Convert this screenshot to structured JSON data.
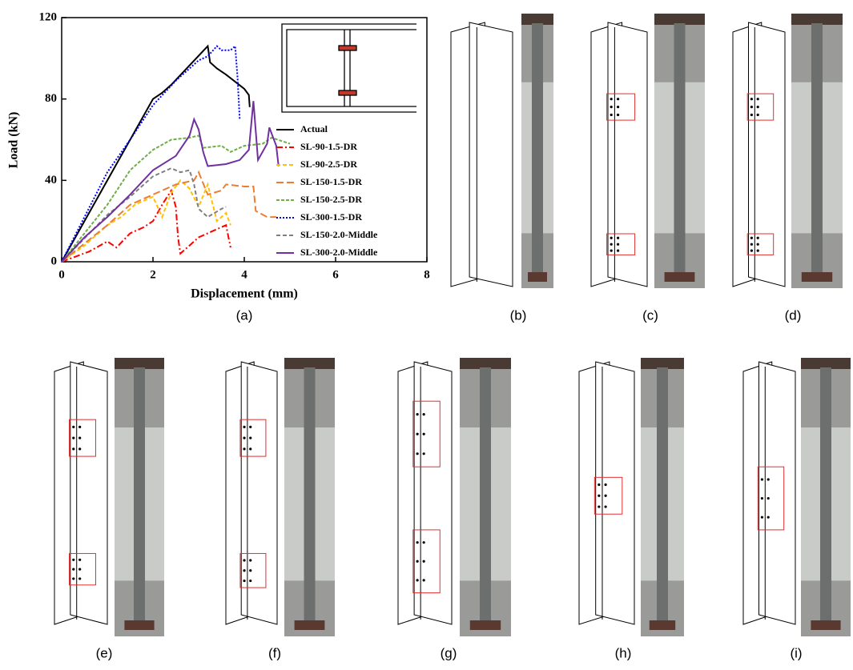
{
  "chart_data": {
    "type": "line",
    "x_label": "Displacement (mm)",
    "y_label": "Load (kN)",
    "xlim": [
      0,
      8
    ],
    "ylim": [
      0,
      120
    ],
    "xticks": [
      0,
      2,
      4,
      6,
      8
    ],
    "yticks": [
      0,
      40,
      80,
      120
    ],
    "grid": false,
    "legend": "lower right",
    "series": [
      {
        "name": "Actual",
        "color": "#000000",
        "style": "solid",
        "x": [
          0,
          2,
          2.2,
          2.4,
          3.2,
          3.25,
          3.4,
          3.6,
          4.0,
          4.1,
          4.12
        ],
        "values": [
          0,
          80,
          83,
          87,
          106,
          98,
          95,
          92,
          85,
          82,
          76
        ]
      },
      {
        "name": "SL-90-1.5-DR",
        "color": "#ff0000",
        "style": "dashdot",
        "x": [
          0,
          0.6,
          1,
          1.2,
          1.5,
          1.8,
          2.0,
          2.2,
          2.4,
          2.5,
          2.55,
          2.6,
          2.8,
          3.0,
          3.4,
          3.6,
          3.7
        ],
        "values": [
          0,
          5,
          10,
          7,
          14,
          17,
          20,
          28,
          35,
          27,
          12,
          4,
          8,
          12,
          16,
          18,
          7
        ]
      },
      {
        "name": "SL-90-2.5-DR",
        "color": "#ffc000",
        "style": "dashed",
        "x": [
          0,
          0.5,
          1,
          1.3,
          1.6,
          2,
          2.2,
          2.4,
          2.6,
          2.8,
          3.0,
          3.2,
          3.3,
          3.4,
          3.6,
          3.7
        ],
        "values": [
          0,
          8,
          18,
          22,
          28,
          32,
          22,
          34,
          40,
          36,
          27,
          38,
          29,
          20,
          24,
          18
        ]
      },
      {
        "name": "SL-150-1.5-DR",
        "color": "#ed7d31",
        "style": "longdash",
        "x": [
          0,
          1,
          1.5,
          2,
          2.5,
          2.9,
          3.0,
          3.2,
          3.5,
          3.6,
          4.0,
          4.2,
          4.25,
          4.5,
          4.7
        ],
        "values": [
          0,
          18,
          28,
          33,
          38,
          40,
          44,
          33,
          35,
          38,
          37,
          37,
          25,
          22,
          22
        ]
      },
      {
        "name": "SL-150-2.5-DR",
        "color": "#70ad47",
        "style": "shortdash",
        "x": [
          0,
          1,
          1.5,
          2,
          2.4,
          2.8,
          3.0,
          3.1,
          3.5,
          3.7,
          4,
          4.4,
          4.6,
          5.0
        ],
        "values": [
          0,
          28,
          45,
          55,
          60,
          61,
          62,
          56,
          57,
          54,
          57,
          58,
          61,
          58
        ]
      },
      {
        "name": "SL-300-1.5-DR",
        "color": "#0000ff",
        "style": "dotted",
        "x": [
          0,
          0.5,
          1,
          1.5,
          2,
          2.5,
          3,
          3.2,
          3.4,
          3.5,
          3.7,
          3.8,
          3.85,
          3.9
        ],
        "values": [
          0,
          22,
          44,
          60,
          77,
          89,
          99,
          101,
          106,
          104,
          104,
          106,
          91,
          70
        ]
      },
      {
        "name": "SL-150-2.0-Middle",
        "color": "#7f7f7f",
        "style": "dashed",
        "x": [
          0,
          1,
          1.5,
          2,
          2.4,
          2.6,
          2.8,
          2.9,
          3.0,
          3.2,
          3.5,
          3.6
        ],
        "values": [
          0,
          23,
          32,
          42,
          46,
          44,
          45,
          38,
          26,
          22,
          26,
          27
        ]
      },
      {
        "name": "SL-300-2.0-Middle",
        "color": "#7030a0",
        "style": "solid",
        "x": [
          0,
          0.5,
          1,
          1.5,
          2,
          2.5,
          2.8,
          2.9,
          3,
          3.1,
          3.2,
          3.6,
          3.9,
          4.1,
          4.2,
          4.3,
          4.5,
          4.55,
          4.7,
          4.75
        ],
        "values": [
          0,
          12,
          22,
          33,
          45,
          52,
          62,
          70,
          65,
          54,
          47,
          48,
          50,
          55,
          79,
          50,
          58,
          66,
          57,
          47
        ]
      }
    ]
  },
  "panel_labels": [
    "(a)",
    "(b)",
    "(c)",
    "(d)",
    "(e)",
    "(f)",
    "(g)",
    "(h)",
    "(i)"
  ]
}
